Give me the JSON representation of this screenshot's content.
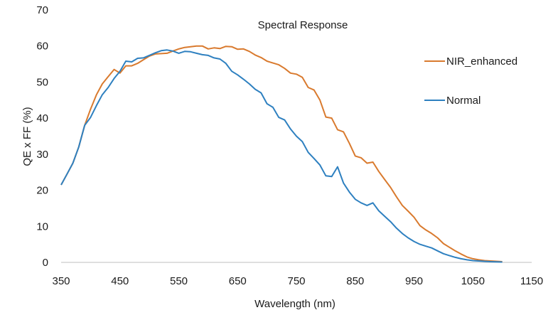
{
  "chart_data": {
    "type": "line",
    "title": "Spectral Response",
    "xlabel": "Wavelength (nm)",
    "ylabel": "QE x FF (%)",
    "xlim": [
      350,
      1150
    ],
    "ylim": [
      0,
      70
    ],
    "x_ticks": [
      "350",
      "450",
      "550",
      "650",
      "750",
      "850",
      "950",
      "1050",
      "1150"
    ],
    "y_ticks": [
      "0",
      "10",
      "20",
      "30",
      "40",
      "50",
      "60",
      "70"
    ],
    "grid": false,
    "legend_position": "right",
    "series": [
      {
        "name": "NIR_enhanced",
        "color": "#D97A2E",
        "points": [
          [
            350,
            21.5
          ],
          [
            360,
            24.5
          ],
          [
            370,
            27.5
          ],
          [
            380,
            32
          ],
          [
            390,
            38
          ],
          [
            400,
            42.5
          ],
          [
            410,
            46.5
          ],
          [
            420,
            49.5
          ],
          [
            430,
            51.5
          ],
          [
            440,
            53.5
          ],
          [
            450,
            52.5
          ],
          [
            460,
            54.5
          ],
          [
            470,
            54.5
          ],
          [
            480,
            55.2
          ],
          [
            490,
            56.2
          ],
          [
            500,
            57.2
          ],
          [
            510,
            57.8
          ],
          [
            520,
            57.9
          ],
          [
            530,
            58
          ],
          [
            540,
            58.6
          ],
          [
            550,
            59.2
          ],
          [
            560,
            59.6
          ],
          [
            570,
            59.8
          ],
          [
            580,
            60
          ],
          [
            590,
            60
          ],
          [
            600,
            59.2
          ],
          [
            610,
            59.5
          ],
          [
            620,
            59.3
          ],
          [
            630,
            59.9
          ],
          [
            640,
            59.8
          ],
          [
            650,
            59.1
          ],
          [
            660,
            59.2
          ],
          [
            670,
            58.5
          ],
          [
            680,
            57.5
          ],
          [
            690,
            56.8
          ],
          [
            700,
            55.8
          ],
          [
            710,
            55.3
          ],
          [
            720,
            54.8
          ],
          [
            730,
            53.8
          ],
          [
            740,
            52.5
          ],
          [
            750,
            52.2
          ],
          [
            760,
            51.3
          ],
          [
            770,
            48.5
          ],
          [
            780,
            47.8
          ],
          [
            790,
            45
          ],
          [
            800,
            40.3
          ],
          [
            810,
            40
          ],
          [
            820,
            36.8
          ],
          [
            830,
            36.2
          ],
          [
            840,
            33
          ],
          [
            850,
            29.5
          ],
          [
            860,
            29
          ],
          [
            870,
            27.5
          ],
          [
            880,
            27.8
          ],
          [
            890,
            25.2
          ],
          [
            900,
            23
          ],
          [
            910,
            20.8
          ],
          [
            920,
            18.2
          ],
          [
            930,
            15.8
          ],
          [
            940,
            14.2
          ],
          [
            950,
            12.5
          ],
          [
            960,
            10.2
          ],
          [
            970,
            9
          ],
          [
            980,
            8
          ],
          [
            990,
            6.8
          ],
          [
            1000,
            5.2
          ],
          [
            1010,
            4.2
          ],
          [
            1020,
            3.2
          ],
          [
            1030,
            2.3
          ],
          [
            1040,
            1.5
          ],
          [
            1050,
            1
          ],
          [
            1060,
            0.7
          ],
          [
            1070,
            0.5
          ],
          [
            1080,
            0.4
          ],
          [
            1090,
            0.3
          ],
          [
            1100,
            0.2
          ]
        ]
      },
      {
        "name": "Normal",
        "color": "#2E80C0",
        "points": [
          [
            350,
            21.5
          ],
          [
            360,
            24.5
          ],
          [
            370,
            27.5
          ],
          [
            380,
            32
          ],
          [
            390,
            38
          ],
          [
            400,
            40.2
          ],
          [
            410,
            43.5
          ],
          [
            420,
            46.5
          ],
          [
            430,
            48.5
          ],
          [
            440,
            51
          ],
          [
            450,
            53
          ],
          [
            460,
            55.8
          ],
          [
            470,
            55.6
          ],
          [
            480,
            56.6
          ],
          [
            490,
            56.7
          ],
          [
            500,
            57.4
          ],
          [
            510,
            58.1
          ],
          [
            520,
            58.7
          ],
          [
            530,
            58.9
          ],
          [
            540,
            58.6
          ],
          [
            550,
            58
          ],
          [
            560,
            58.5
          ],
          [
            570,
            58.4
          ],
          [
            580,
            58
          ],
          [
            590,
            57.6
          ],
          [
            600,
            57.4
          ],
          [
            610,
            56.7
          ],
          [
            620,
            56.4
          ],
          [
            630,
            55.2
          ],
          [
            640,
            53
          ],
          [
            650,
            52
          ],
          [
            660,
            50.8
          ],
          [
            670,
            49.5
          ],
          [
            680,
            48
          ],
          [
            690,
            47
          ],
          [
            700,
            44
          ],
          [
            710,
            43
          ],
          [
            720,
            40.2
          ],
          [
            730,
            39.5
          ],
          [
            740,
            37
          ],
          [
            750,
            35
          ],
          [
            760,
            33.5
          ],
          [
            770,
            30.5
          ],
          [
            780,
            28.8
          ],
          [
            790,
            27
          ],
          [
            800,
            24
          ],
          [
            810,
            23.8
          ],
          [
            820,
            26.5
          ],
          [
            830,
            22
          ],
          [
            840,
            19.5
          ],
          [
            850,
            17.5
          ],
          [
            860,
            16.5
          ],
          [
            870,
            15.8
          ],
          [
            880,
            16.5
          ],
          [
            890,
            14.3
          ],
          [
            900,
            12.8
          ],
          [
            910,
            11.3
          ],
          [
            920,
            9.5
          ],
          [
            930,
            8
          ],
          [
            940,
            6.8
          ],
          [
            950,
            5.8
          ],
          [
            960,
            5
          ],
          [
            970,
            4.5
          ],
          [
            980,
            4
          ],
          [
            990,
            3.2
          ],
          [
            1000,
            2.4
          ],
          [
            1010,
            1.9
          ],
          [
            1020,
            1.4
          ],
          [
            1030,
            1
          ],
          [
            1040,
            0.7
          ],
          [
            1050,
            0.5
          ],
          [
            1060,
            0.4
          ],
          [
            1070,
            0.3
          ],
          [
            1080,
            0.2
          ],
          [
            1090,
            0.15
          ],
          [
            1100,
            0.1
          ]
        ]
      }
    ]
  }
}
